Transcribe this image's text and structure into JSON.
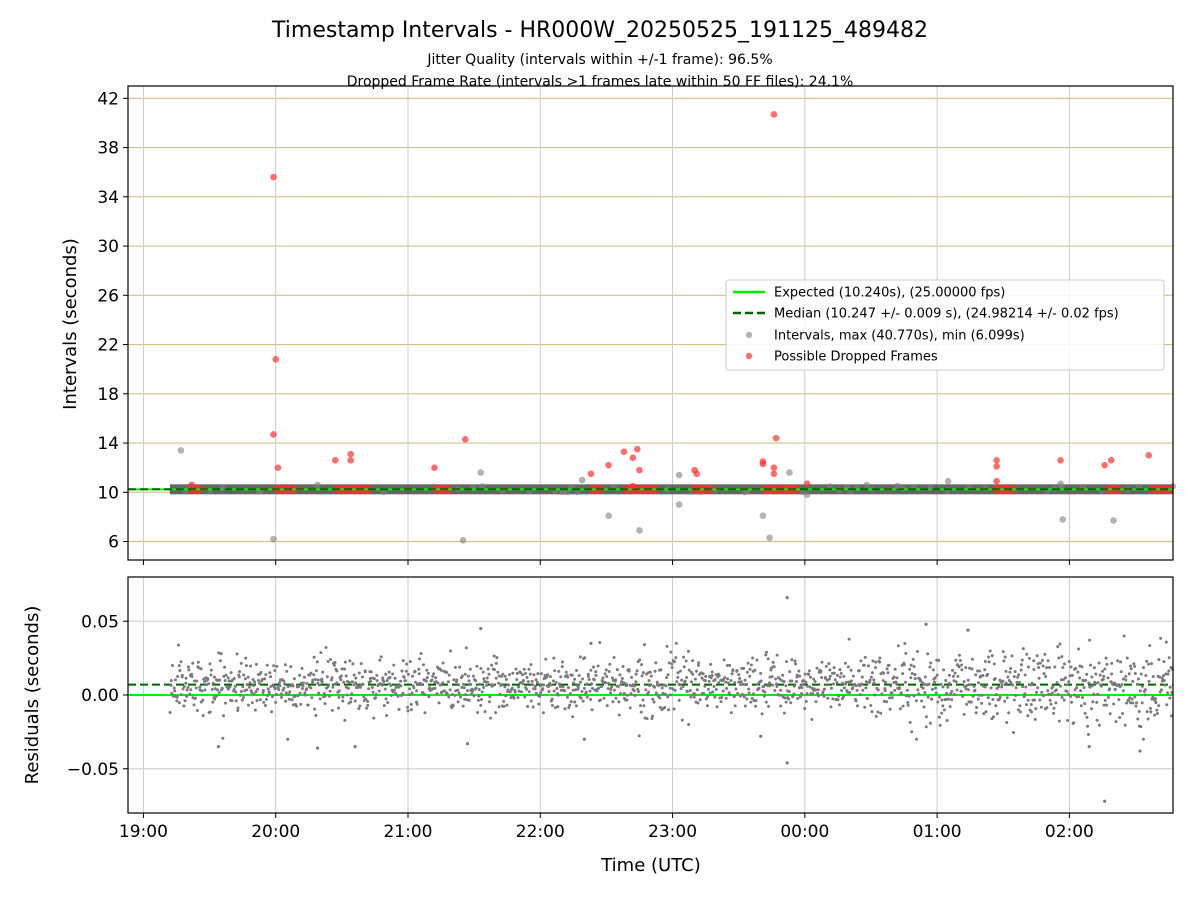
{
  "chart_data": [
    {
      "type": "scatter",
      "title": "Timestamp Intervals - HR000W_20250525_191125_489482",
      "subtitle_lines": [
        "Jitter Quality (intervals within +/-1 frame): 96.5%",
        "Dropped Frame Rate (intervals >1 frames late within 50 FF files): 24.1%"
      ],
      "ylabel": "Intervals (seconds)",
      "ylim": [
        4.5,
        43
      ],
      "yticks": [
        6,
        10,
        14,
        18,
        22,
        26,
        30,
        34,
        38,
        42
      ],
      "xlim": [
        "18:53",
        "02:47"
      ],
      "grid": true,
      "legend_position": "center-right",
      "expected_interval": 10.24,
      "median_interval": 10.247,
      "band_x_range": [
        "19:12",
        "02:47"
      ],
      "legend": [
        {
          "label": "Expected (10.240s), (25.00000 fps)",
          "kind": "solid-line",
          "color": "#00ee00"
        },
        {
          "label": "Median (10.247 +/- 0.009 s), (24.98214 +/- 0.02 fps)",
          "kind": "dashed-line",
          "color": "#006400"
        },
        {
          "label": "Intervals, max (40.770s), min (6.099s)",
          "kind": "dot",
          "color": "#808080"
        },
        {
          "label": "Possible Dropped Frames",
          "kind": "dot",
          "color": "#ff3030"
        }
      ],
      "series": [
        {
          "name": "Intervals, max (40.770s), min (6.099s)",
          "color": "#808080",
          "points": [
            [
              "19:17",
              13.4
            ],
            [
              "19:59",
              6.2
            ],
            [
              "20:19",
              10.6
            ],
            [
              "21:25",
              6.1
            ],
            [
              "21:33",
              11.6
            ],
            [
              "22:19",
              11.0
            ],
            [
              "22:31",
              8.1
            ],
            [
              "22:45",
              6.9
            ],
            [
              "23:03",
              11.4
            ],
            [
              "23:03",
              9.0
            ],
            [
              "23:41",
              8.1
            ],
            [
              "23:44",
              6.3
            ],
            [
              "23:53",
              11.6
            ],
            [
              "00:01",
              9.8
            ],
            [
              "00:28",
              10.6
            ],
            [
              "00:42",
              10.5
            ],
            [
              "01:05",
              10.9
            ],
            [
              "01:56",
              10.7
            ],
            [
              "01:57",
              7.8
            ],
            [
              "02:20",
              7.7
            ],
            [
              "00:57",
              10.4
            ],
            [
              "19:36",
              10.4
            ]
          ]
        },
        {
          "name": "Possible Dropped Frames",
          "color": "#ff3030",
          "points": [
            [
              "19:59",
              35.6
            ],
            [
              "20:00",
              20.8
            ],
            [
              "19:59",
              14.7
            ],
            [
              "20:01",
              12.0
            ],
            [
              "20:27",
              12.6
            ],
            [
              "20:34",
              13.1
            ],
            [
              "20:34",
              12.6
            ],
            [
              "21:12",
              12.0
            ],
            [
              "21:26",
              14.3
            ],
            [
              "22:23",
              11.5
            ],
            [
              "22:31",
              12.2
            ],
            [
              "22:38",
              13.3
            ],
            [
              "22:42",
              12.8
            ],
            [
              "22:44",
              13.5
            ],
            [
              "22:45",
              11.8
            ],
            [
              "22:42",
              10.5
            ],
            [
              "23:10",
              11.8
            ],
            [
              "23:11",
              11.5
            ],
            [
              "23:41",
              12.3
            ],
            [
              "23:41",
              12.5
            ],
            [
              "23:46",
              40.7
            ],
            [
              "23:47",
              14.4
            ],
            [
              "23:46",
              12.0
            ],
            [
              "23:46",
              11.5
            ],
            [
              "00:01",
              10.7
            ],
            [
              "01:27",
              12.6
            ],
            [
              "01:27",
              12.1
            ],
            [
              "01:27",
              10.9
            ],
            [
              "01:56",
              12.6
            ],
            [
              "02:16",
              12.2
            ],
            [
              "02:19",
              12.6
            ],
            [
              "02:36",
              13.0
            ],
            [
              "19:22",
              10.6
            ]
          ]
        }
      ],
      "dropped_clusters": [
        [
          "19:20",
          "19:27"
        ],
        [
          "19:59",
          "20:10"
        ],
        [
          "20:26",
          "20:44"
        ],
        [
          "21:11",
          "21:20"
        ],
        [
          "22:22",
          "22:29"
        ],
        [
          "22:37",
          "22:54"
        ],
        [
          "23:08",
          "23:19"
        ],
        [
          "23:40",
          "23:58"
        ],
        [
          "01:25",
          "01:36"
        ],
        [
          "02:16",
          "02:24"
        ],
        [
          "02:36",
          "02:47"
        ]
      ]
    },
    {
      "type": "scatter",
      "ylabel": "Residuals (seconds)",
      "xlabel": "Time (UTC)",
      "ylim": [
        -0.08,
        0.08
      ],
      "yticks": [
        0.05,
        0.0,
        -0.05
      ],
      "ytick_labels": [
        "0.05",
        "0.00",
        "−0.05"
      ],
      "xticks": [
        "19:00",
        "20:00",
        "21:00",
        "22:00",
        "23:00",
        "00:00",
        "01:00",
        "02:00"
      ],
      "xlim": [
        "18:53",
        "02:47"
      ],
      "grid": true,
      "expected_residual": 0.0,
      "median_residual": 0.007,
      "residual_std": 0.009,
      "series": [
        {
          "name": "Residuals",
          "color": "#7a7a7a",
          "x_range": [
            "19:12",
            "02:47"
          ],
          "outliers": [
            [
              "23:52",
              0.066
            ],
            [
              "23:52",
              -0.046
            ],
            [
              "02:16",
              -0.072
            ],
            [
              "21:33",
              0.045
            ],
            [
              "19:34",
              -0.035
            ],
            [
              "20:19",
              -0.036
            ],
            [
              "20:36",
              -0.035
            ],
            [
              "21:27",
              -0.033
            ],
            [
              "22:20",
              -0.03
            ],
            [
              "23:40",
              -0.028
            ],
            [
              "02:09",
              -0.035
            ],
            [
              "02:32",
              -0.038
            ],
            [
              "00:55",
              0.048
            ],
            [
              "22:23",
              0.035
            ],
            [
              "01:14",
              0.044
            ]
          ]
        }
      ]
    }
  ]
}
